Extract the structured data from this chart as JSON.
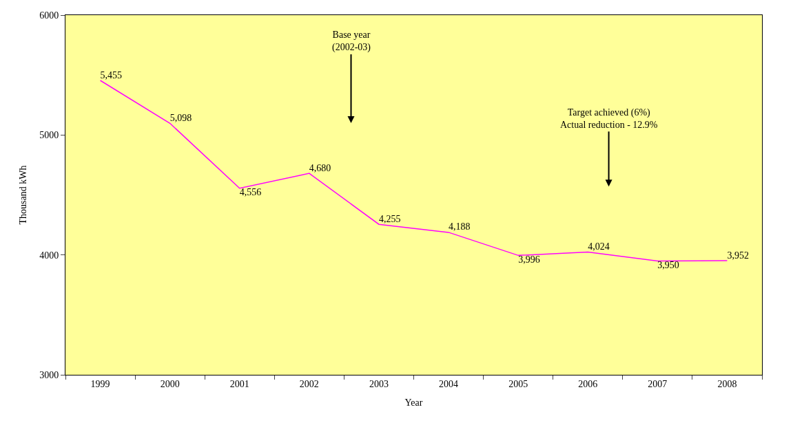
{
  "chart_data": {
    "type": "line",
    "xlabel": "Year",
    "ylabel": "Thousand kWh",
    "categories": [
      "1999",
      "2000",
      "2001",
      "2002",
      "2003",
      "2004",
      "2005",
      "2006",
      "2007",
      "2008"
    ],
    "series": [
      {
        "color": "#ff00ff",
        "values": [
          5455,
          5098,
          4556,
          4680,
          4255,
          4188,
          3996,
          4024,
          3950,
          3952
        ],
        "value_labels": [
          "5,455",
          "5,098",
          "4,556",
          "4,680",
          "4,255",
          "4,188",
          "3,996",
          "4,024",
          "3,950",
          "3,952"
        ]
      }
    ],
    "ylim": [
      3000,
      6000
    ],
    "yticks": [
      3000,
      4000,
      5000,
      6000
    ],
    "annotations": [
      "Base year\n(2002-03)",
      "Target achieved (6%)\nActual reduction - 12.9%"
    ],
    "grid": false,
    "legend": false
  }
}
